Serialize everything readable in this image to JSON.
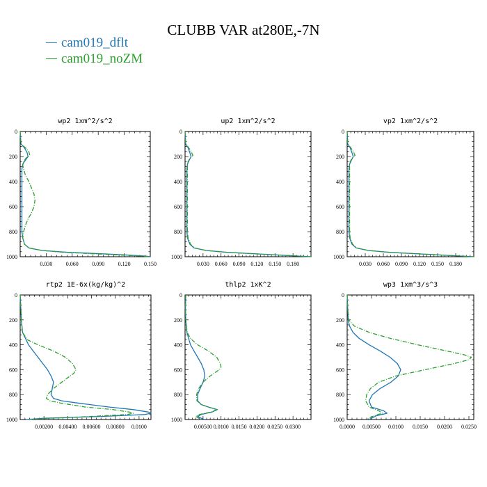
{
  "title": "CLUBB VAR at280E,-7N",
  "legend": [
    {
      "label": "cam019_dflt",
      "color": "#1f77b4"
    },
    {
      "label": "cam019_noZM",
      "color": "#2ca02c"
    }
  ],
  "chart_data": [
    {
      "type": "line",
      "title": "wp2   1xm^2/s^2",
      "xlim": [
        0,
        0.15
      ],
      "ylim": [
        1000,
        0
      ],
      "xticks": [
        0.03,
        0.06,
        0.09,
        0.12,
        0.15
      ],
      "xticklabels": [
        "0.030",
        "0.060",
        "0.090",
        "0.120",
        "0.150"
      ],
      "yticks": [
        0,
        200,
        400,
        600,
        800,
        1000
      ],
      "series": [
        {
          "name": "cam019_dflt",
          "y": [
            0,
            100,
            130,
            170,
            200,
            230,
            260,
            300,
            400,
            500,
            600,
            700,
            800,
            850,
            900,
            930,
            950,
            965,
            975,
            985,
            995,
            1000
          ],
          "x": [
            0,
            0.001,
            0.005,
            0.008,
            0.009,
            0.006,
            0.003,
            0.002,
            0.002,
            0.002,
            0.002,
            0.002,
            0.002,
            0.003,
            0.005,
            0.01,
            0.025,
            0.055,
            0.09,
            0.12,
            0.145,
            0.15
          ]
        },
        {
          "name": "cam019_noZM",
          "y": [
            0,
            100,
            130,
            160,
            190,
            210,
            240,
            270,
            300,
            350,
            400,
            450,
            500,
            550,
            600,
            650,
            700,
            750,
            800,
            850,
            900,
            930,
            950,
            965,
            975,
            985,
            995,
            1000
          ],
          "x": [
            0,
            0.001,
            0.006,
            0.01,
            0.011,
            0.007,
            0.004,
            0.003,
            0.004,
            0.006,
            0.01,
            0.013,
            0.016,
            0.017,
            0.016,
            0.013,
            0.009,
            0.006,
            0.004,
            0.003,
            0.005,
            0.01,
            0.025,
            0.05,
            0.08,
            0.11,
            0.14,
            0.148
          ]
        }
      ]
    },
    {
      "type": "line",
      "title": "up2   1xm^2/s^2",
      "xlim": [
        0,
        0.21
      ],
      "ylim": [
        1000,
        0
      ],
      "xticks": [
        0.03,
        0.06,
        0.09,
        0.12,
        0.15,
        0.18
      ],
      "xticklabels": [
        "0.030",
        "0.060",
        "0.090",
        "0.120",
        "0.150",
        "0.180"
      ],
      "yticks": [
        0,
        200,
        400,
        600,
        800,
        1000
      ],
      "series": [
        {
          "name": "cam019_dflt",
          "y": [
            0,
            100,
            130,
            170,
            200,
            230,
            260,
            300,
            400,
            500,
            600,
            700,
            800,
            850,
            900,
            930,
            950,
            965,
            975,
            985,
            995,
            1000
          ],
          "x": [
            0,
            0.001,
            0.005,
            0.008,
            0.01,
            0.007,
            0.004,
            0.003,
            0.003,
            0.003,
            0.003,
            0.003,
            0.003,
            0.004,
            0.008,
            0.015,
            0.035,
            0.07,
            0.11,
            0.15,
            0.19,
            0.21
          ]
        },
        {
          "name": "cam019_noZM",
          "y": [
            0,
            100,
            130,
            160,
            190,
            210,
            240,
            270,
            300,
            400,
            500,
            600,
            700,
            800,
            850,
            900,
            930,
            950,
            965,
            975,
            985,
            995,
            1000
          ],
          "x": [
            0,
            0.001,
            0.006,
            0.01,
            0.013,
            0.009,
            0.005,
            0.004,
            0.004,
            0.004,
            0.004,
            0.004,
            0.004,
            0.004,
            0.005,
            0.009,
            0.016,
            0.035,
            0.07,
            0.11,
            0.15,
            0.19,
            0.21
          ]
        }
      ]
    },
    {
      "type": "line",
      "title": "vp2   1xm^2/s^2",
      "xlim": [
        0,
        0.21
      ],
      "ylim": [
        1000,
        0
      ],
      "xticks": [
        0.03,
        0.06,
        0.09,
        0.12,
        0.15,
        0.18
      ],
      "xticklabels": [
        "0.030",
        "0.060",
        "0.090",
        "0.120",
        "0.150",
        "0.180"
      ],
      "yticks": [
        0,
        200,
        400,
        600,
        800,
        1000
      ],
      "series": [
        {
          "name": "cam019_dflt",
          "y": [
            0,
            100,
            130,
            170,
            200,
            230,
            260,
            300,
            400,
            500,
            600,
            700,
            800,
            850,
            900,
            930,
            950,
            965,
            975,
            985,
            995,
            1000
          ],
          "x": [
            0,
            0.001,
            0.005,
            0.008,
            0.01,
            0.007,
            0.004,
            0.003,
            0.003,
            0.003,
            0.003,
            0.003,
            0.003,
            0.004,
            0.008,
            0.015,
            0.035,
            0.07,
            0.11,
            0.15,
            0.19,
            0.21
          ]
        },
        {
          "name": "cam019_noZM",
          "y": [
            0,
            100,
            130,
            160,
            190,
            210,
            240,
            270,
            300,
            400,
            500,
            600,
            700,
            800,
            850,
            900,
            930,
            950,
            965,
            975,
            985,
            995,
            1000
          ],
          "x": [
            0,
            0.001,
            0.006,
            0.01,
            0.013,
            0.009,
            0.005,
            0.004,
            0.004,
            0.004,
            0.004,
            0.004,
            0.004,
            0.004,
            0.005,
            0.009,
            0.016,
            0.035,
            0.07,
            0.11,
            0.15,
            0.19,
            0.21
          ]
        }
      ]
    },
    {
      "type": "line",
      "title": "rtp2   1E-6x(kg/kg)^2",
      "xlim": [
        0,
        0.011
      ],
      "ylim": [
        1000,
        0
      ],
      "xticks": [
        0.002,
        0.004,
        0.006,
        0.008,
        0.01
      ],
      "xticklabels": [
        "0.00200",
        "0.00400",
        "0.00600",
        "0.00800",
        "0.0100"
      ],
      "yticks": [
        0,
        200,
        400,
        600,
        800,
        1000
      ],
      "series": [
        {
          "name": "cam019_dflt",
          "y": [
            0,
            200,
            300,
            400,
            450,
            500,
            550,
            600,
            650,
            700,
            750,
            800,
            830,
            850,
            870,
            900,
            920,
            940,
            950,
            960,
            975,
            990,
            1000
          ],
          "x": [
            0,
            0.0001,
            0.0002,
            0.0007,
            0.0011,
            0.0015,
            0.0019,
            0.0023,
            0.0026,
            0.0028,
            0.0027,
            0.0026,
            0.0028,
            0.0035,
            0.005,
            0.0075,
            0.0095,
            0.0108,
            0.011,
            0.0105,
            0.007,
            0.002,
            0.0005
          ]
        },
        {
          "name": "cam019_noZM",
          "y": [
            0,
            200,
            300,
            360,
            400,
            450,
            500,
            550,
            600,
            630,
            650,
            700,
            750,
            800,
            830,
            850,
            870,
            900,
            920,
            940,
            950,
            960,
            975,
            990,
            1000
          ],
          "x": [
            0,
            0.0001,
            0.0002,
            0.0006,
            0.0015,
            0.0028,
            0.0038,
            0.0044,
            0.0047,
            0.0045,
            0.0042,
            0.0035,
            0.0028,
            0.0023,
            0.0022,
            0.0025,
            0.0035,
            0.0055,
            0.0078,
            0.0092,
            0.0095,
            0.009,
            0.006,
            0.0025,
            0.0008
          ]
        }
      ]
    },
    {
      "type": "line",
      "title": "thlp2   1xK^2",
      "xlim": [
        0,
        0.035
      ],
      "ylim": [
        1000,
        0
      ],
      "xticks": [
        0.005,
        0.01,
        0.015,
        0.02,
        0.025,
        0.03
      ],
      "xticklabels": [
        "0.00500",
        "0.0100",
        "0.0150",
        "0.0200",
        "0.0250",
        "0.0300"
      ],
      "yticks": [
        0,
        200,
        400,
        600,
        800,
        1000
      ],
      "series": [
        {
          "name": "cam019_dflt",
          "y": [
            0,
            100,
            200,
            300,
            400,
            450,
            500,
            550,
            600,
            650,
            700,
            750,
            800,
            850,
            880,
            900,
            920,
            940,
            960,
            975,
            990,
            1000
          ],
          "x": [
            0.0002,
            0.0001,
            0.0002,
            0.0005,
            0.0015,
            0.0025,
            0.0035,
            0.0045,
            0.0052,
            0.0055,
            0.005,
            0.0042,
            0.0035,
            0.0035,
            0.0045,
            0.0065,
            0.009,
            0.0075,
            0.0045,
            0.0035,
            0.0045,
            0.0055
          ]
        },
        {
          "name": "cam019_noZM",
          "y": [
            0,
            100,
            200,
            300,
            350,
            400,
            450,
            500,
            550,
            580,
            600,
            650,
            700,
            750,
            800,
            850,
            880,
            900,
            920,
            940,
            960,
            975,
            990,
            1000
          ],
          "x": [
            0.0002,
            0.0001,
            0.0002,
            0.0006,
            0.0015,
            0.0035,
            0.0065,
            0.0088,
            0.0098,
            0.01,
            0.0095,
            0.007,
            0.005,
            0.0038,
            0.0032,
            0.0033,
            0.0045,
            0.0065,
            0.0088,
            0.0072,
            0.004,
            0.003,
            0.0038,
            0.0045
          ]
        }
      ]
    },
    {
      "type": "line",
      "title": "wp3   1xm^3/s^3",
      "xlim": [
        0,
        0.026
      ],
      "ylim": [
        1000,
        0
      ],
      "xticks": [
        0,
        0.005,
        0.01,
        0.015,
        0.02,
        0.025
      ],
      "xticklabels": [
        "0.0000",
        "0.00500",
        "0.0100",
        "0.0150",
        "0.0200",
        "0.0250"
      ],
      "yticks": [
        0,
        200,
        400,
        600,
        800,
        1000
      ],
      "series": [
        {
          "name": "cam019_dflt",
          "y": [
            0,
            100,
            200,
            250,
            300,
            350,
            400,
            450,
            500,
            550,
            600,
            650,
            700,
            750,
            800,
            850,
            900,
            930,
            950,
            970,
            1000
          ],
          "x": [
            0,
            0.0001,
            0.0002,
            0.0005,
            0.0012,
            0.0025,
            0.0045,
            0.0068,
            0.0088,
            0.0103,
            0.011,
            0.0105,
            0.009,
            0.0068,
            0.0052,
            0.0045,
            0.005,
            0.0075,
            0.0082,
            0.006,
            0.0045
          ]
        },
        {
          "name": "cam019_noZM",
          "y": [
            0,
            100,
            200,
            250,
            300,
            350,
            400,
            450,
            480,
            500,
            520,
            550,
            600,
            650,
            700,
            750,
            800,
            850,
            900,
            930,
            950,
            970,
            1000
          ],
          "x": [
            0,
            0.0001,
            0.0003,
            0.0015,
            0.0045,
            0.009,
            0.0145,
            0.0205,
            0.024,
            0.0255,
            0.025,
            0.022,
            0.016,
            0.01,
            0.0065,
            0.0048,
            0.004,
            0.0038,
            0.0045,
            0.0065,
            0.0072,
            0.0055,
            0.004
          ]
        }
      ]
    }
  ]
}
